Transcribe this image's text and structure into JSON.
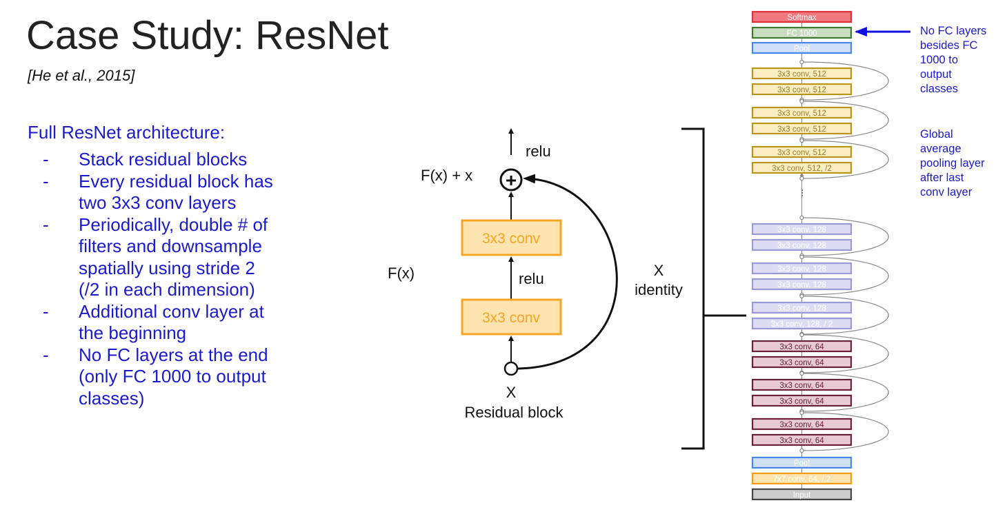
{
  "slide": {
    "title": "Case Study: ResNet",
    "citation": "[He et al., 2015]",
    "lead": "Full ResNet architecture:",
    "bullets": [
      {
        "dash": "-",
        "text": "Stack residual blocks"
      },
      {
        "dash": "-",
        "text": "Every residual block has\ntwo 3x3 conv layers"
      },
      {
        "dash": "-",
        "text": "Periodically, double # of\nfilters and downsample\nspatially using stride 2\n(/2 in each dimension)"
      },
      {
        "dash": "-",
        "text": "Additional conv layer at\nthe beginning"
      },
      {
        "dash": "-",
        "text": "No FC layers at the end\n(only FC 1000 to output\nclasses)"
      }
    ]
  },
  "residual_block": {
    "relu_top": "relu",
    "sum_label": "F(x) + x",
    "plus_symbol": "+",
    "conv_top": "3x3 conv",
    "conv_bottom": "3x3 conv",
    "fx_label": "F(x)",
    "relu_mid": "relu",
    "x_label": "X",
    "caption": "Residual block",
    "identity_x": "X",
    "identity_label": "identity"
  },
  "network": {
    "layers": [
      {
        "label": "Softmax",
        "stroke": "#e0303a",
        "fill": "#f07880",
        "text": "#ffffff"
      },
      {
        "label": "FC 1000",
        "stroke": "#3c7a30",
        "fill": "#c8dcc0",
        "text": "#ffffff"
      },
      {
        "label": "Pool",
        "stroke": "#4a86e8",
        "fill": "#cfe0f8",
        "text": "#ffffff"
      },
      {
        "label": "3x3 conv, 512",
        "stroke": "#b8941a",
        "fill": "#fbefc2",
        "text": "#9a7a2a"
      },
      {
        "label": "3x3 conv, 512",
        "stroke": "#b8941a",
        "fill": "#fbefc2",
        "text": "#9a7a2a"
      },
      {
        "label": "3x3 conv, 512",
        "stroke": "#b8941a",
        "fill": "#fbefc2",
        "text": "#9a7a2a"
      },
      {
        "label": "3x3 conv, 512",
        "stroke": "#b8941a",
        "fill": "#fbefc2",
        "text": "#9a7a2a"
      },
      {
        "label": "3x3 conv, 512",
        "stroke": "#b8941a",
        "fill": "#fbefc2",
        "text": "#9a7a2a"
      },
      {
        "label": "3x3 conv, 512, /2",
        "stroke": "#b8941a",
        "fill": "#fbefc2",
        "text": "#9a7a2a"
      },
      {
        "label": "3x3 conv, 128",
        "stroke": "#9a98d6",
        "fill": "#dedcf2",
        "text": "#ffffff"
      },
      {
        "label": "3x3 conv, 128",
        "stroke": "#9a98d6",
        "fill": "#dedcf2",
        "text": "#ffffff"
      },
      {
        "label": "3x3 conv, 128",
        "stroke": "#9a98d6",
        "fill": "#dedcf2",
        "text": "#ffffff"
      },
      {
        "label": "3x3 conv, 128",
        "stroke": "#9a98d6",
        "fill": "#dedcf2",
        "text": "#ffffff"
      },
      {
        "label": "3x3 conv, 128",
        "stroke": "#9a98d6",
        "fill": "#dedcf2",
        "text": "#ffffff"
      },
      {
        "label": "3x3 conv, 128, / 2",
        "stroke": "#9a98d6",
        "fill": "#dedcf2",
        "text": "#ffffff"
      },
      {
        "label": "3x3 conv, 64",
        "stroke": "#6a2038",
        "fill": "#e8cad4",
        "text": "#6a2038"
      },
      {
        "label": "3x3 conv, 64",
        "stroke": "#6a2038",
        "fill": "#e8cad4",
        "text": "#6a2038"
      },
      {
        "label": "3x3 conv, 64",
        "stroke": "#6a2038",
        "fill": "#e8cad4",
        "text": "#6a2038"
      },
      {
        "label": "3x3 conv, 64",
        "stroke": "#6a2038",
        "fill": "#e8cad4",
        "text": "#6a2038"
      },
      {
        "label": "3x3 conv, 64",
        "stroke": "#6a2038",
        "fill": "#e8cad4",
        "text": "#6a2038"
      },
      {
        "label": "3x3 conv, 64",
        "stroke": "#6a2038",
        "fill": "#e8cad4",
        "text": "#6a2038"
      },
      {
        "label": "Pool",
        "stroke": "#4a86e8",
        "fill": "#cfe0f8",
        "text": "#ffffff"
      },
      {
        "label": "7x7 conv, 64, / 2",
        "stroke": "#f39c12",
        "fill": "#fde3b0",
        "text": "#ffffff"
      },
      {
        "label": "Input",
        "stroke": "#444444",
        "fill": "#cccccc",
        "text": "#ffffff"
      }
    ],
    "ellipsis": "..."
  },
  "annotations": {
    "fc_note": "No FC layers\nbesides FC\n1000 to\noutput\nclasses",
    "pool_note": "Global\naverage\npooling layer\nafter last\nconv layer"
  },
  "colors": {
    "text_blue": "#1a1ad0",
    "arrow_blue": "#1010e0",
    "conv_orange": "#f5a623",
    "conv_fill": "#fde3b0"
  }
}
